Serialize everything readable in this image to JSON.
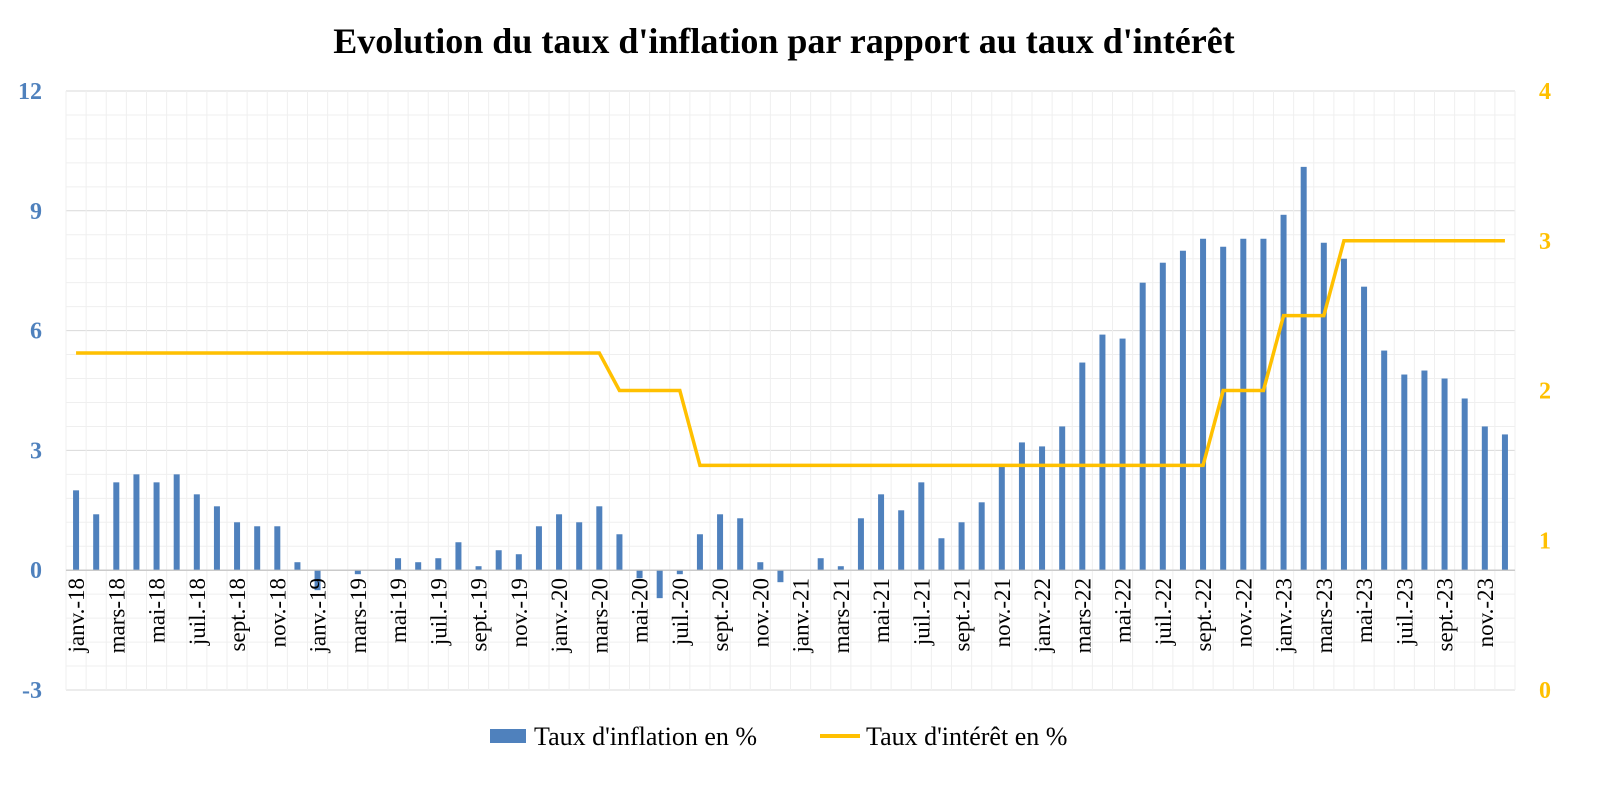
{
  "chart_data": {
    "type": "bar+line",
    "title": "Evolution du taux d'inflation par rapport au taux d'intérêt",
    "x": [
      "janv.-18",
      "févr.-18",
      "mars-18",
      "avr.-18",
      "mai-18",
      "juin-18",
      "juil.-18",
      "août-18",
      "sept.-18",
      "oct.-18",
      "nov.-18",
      "déc.-18",
      "janv.-19",
      "févr.-19",
      "mars-19",
      "avr.-19",
      "mai-19",
      "juin-19",
      "juil.-19",
      "août-19",
      "sept.-19",
      "oct.-19",
      "nov.-19",
      "déc.-19",
      "janv.-20",
      "févr.-20",
      "mars-20",
      "avr.-20",
      "mai-20",
      "juin-20",
      "juil.-20",
      "août-20",
      "sept.-20",
      "oct.-20",
      "nov.-20",
      "déc.-20",
      "janv.-21",
      "févr.-21",
      "mars-21",
      "avr.-21",
      "mai-21",
      "juin-21",
      "juil.-21",
      "août-21",
      "sept.-21",
      "oct.-21",
      "nov.-21",
      "déc.-21",
      "janv.-22",
      "févr.-22",
      "mars-22",
      "avr.-22",
      "mai-22",
      "juin-22",
      "juil.-22",
      "août-22",
      "sept.-22",
      "oct.-22",
      "nov.-22",
      "déc.-22",
      "janv.-23",
      "févr.-23",
      "mars-23",
      "avr.-23",
      "mai-23",
      "juin-23",
      "juil.-23",
      "août-23",
      "sept.-23",
      "oct.-23",
      "nov.-23",
      "déc.-23"
    ],
    "tick_labels": [
      "janv.-18",
      "mars-18",
      "mai-18",
      "juil.-18",
      "sept.-18",
      "nov.-18",
      "janv.-19",
      "mars-19",
      "mai-19",
      "juil.-19",
      "sept.-19",
      "nov.-19",
      "janv.-20",
      "mars-20",
      "mai-20",
      "juil.-20",
      "sept.-20",
      "nov.-20",
      "janv.-21",
      "mars-21",
      "mai-21",
      "juil.-21",
      "sept.-21",
      "nov.-21",
      "janv.-22",
      "mars-22",
      "mai-22",
      "juil.-22",
      "sept.-22",
      "nov.-22",
      "janv.-23",
      "mars-23",
      "mai-23",
      "juil.-23",
      "sept.-23",
      "nov.-23"
    ],
    "series": [
      {
        "name": "Taux d'inflation en %",
        "type": "bar",
        "axis": "left",
        "color": "#4f81bd",
        "values": [
          2.0,
          1.4,
          2.2,
          2.4,
          2.2,
          2.4,
          1.9,
          1.6,
          1.2,
          1.1,
          1.1,
          0.2,
          -0.5,
          0.0,
          -0.1,
          0.0,
          0.3,
          0.2,
          0.3,
          0.7,
          0.1,
          0.5,
          0.4,
          1.1,
          1.4,
          1.2,
          1.6,
          0.9,
          -0.2,
          -0.7,
          -0.1,
          0.9,
          1.4,
          1.3,
          0.2,
          -0.3,
          0.0,
          0.3,
          0.1,
          1.3,
          1.9,
          1.5,
          2.2,
          0.8,
          1.2,
          1.7,
          2.6,
          3.2,
          3.1,
          3.6,
          5.2,
          5.9,
          5.8,
          7.2,
          7.7,
          8.0,
          8.3,
          8.1,
          8.3,
          8.3,
          8.9,
          10.1,
          8.2,
          7.8,
          7.1,
          5.5,
          4.9,
          5.0,
          4.8,
          4.3,
          3.6,
          3.4
        ]
      },
      {
        "name": "Taux d'intérêt en %",
        "type": "line",
        "axis": "right",
        "color": "#ffc000",
        "values": [
          2.25,
          2.25,
          2.25,
          2.25,
          2.25,
          2.25,
          2.25,
          2.25,
          2.25,
          2.25,
          2.25,
          2.25,
          2.25,
          2.25,
          2.25,
          2.25,
          2.25,
          2.25,
          2.25,
          2.25,
          2.25,
          2.25,
          2.25,
          2.25,
          2.25,
          2.25,
          2.25,
          2.0,
          2.0,
          2.0,
          2.0,
          1.5,
          1.5,
          1.5,
          1.5,
          1.5,
          1.5,
          1.5,
          1.5,
          1.5,
          1.5,
          1.5,
          1.5,
          1.5,
          1.5,
          1.5,
          1.5,
          1.5,
          1.5,
          1.5,
          1.5,
          1.5,
          1.5,
          1.5,
          1.5,
          1.5,
          1.5,
          2.0,
          2.0,
          2.0,
          2.5,
          2.5,
          2.5,
          3.0,
          3.0,
          3.0,
          3.0,
          3.0,
          3.0,
          3.0,
          3.0,
          3.0
        ]
      }
    ],
    "y_left": {
      "ylim": [
        -3,
        12
      ],
      "ticks": [
        -3,
        0,
        3,
        6,
        9,
        12
      ],
      "color": "#4f81bd"
    },
    "y_right": {
      "ylim": [
        0,
        4
      ],
      "ticks": [
        0,
        1,
        2,
        3,
        4
      ],
      "color": "#ffc000"
    },
    "grid": true,
    "legend": "bottom-center"
  }
}
